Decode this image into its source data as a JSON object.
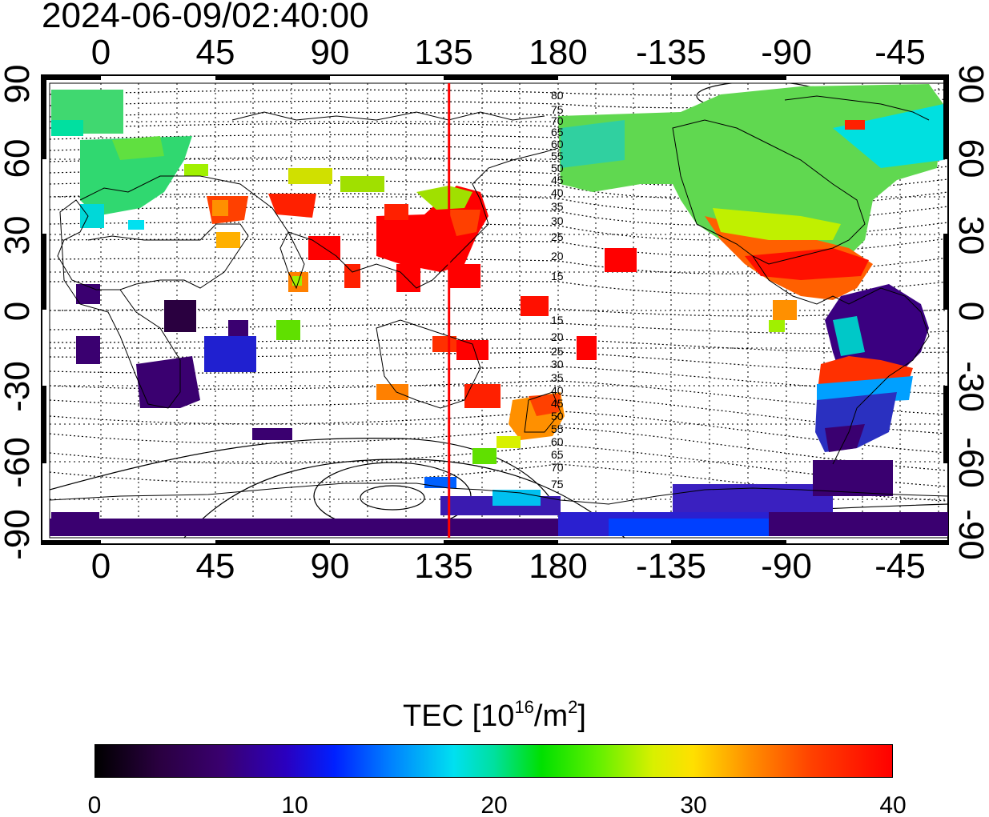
{
  "timestamp": "2024-06-09/02:40:00",
  "lon_labels_top": [
    "0",
    "45",
    "90",
    "135",
    "180",
    "-135",
    "-90",
    "-45"
  ],
  "lon_labels_bottom": [
    "0",
    "45",
    "90",
    "135",
    "180",
    "-135",
    "-90",
    "-45"
  ],
  "lat_labels_left": [
    "90",
    "60",
    "30",
    "0",
    "-30",
    "-60",
    "-90"
  ],
  "lat_labels_right": [
    "90",
    "60",
    "30",
    "0",
    "-30",
    "-60",
    "-90"
  ],
  "map": {
    "lon_range": [
      -20,
      340
    ],
    "lat_range": [
      -90,
      90
    ],
    "grid": true,
    "marker_longitude": 140,
    "marker_color": "#ff0000"
  },
  "contour_labels_north": [
    "80",
    "75",
    "70",
    "65",
    "60",
    "55",
    "50",
    "45",
    "40",
    "35",
    "30",
    "25",
    "20",
    "15"
  ],
  "contour_labels_south": [
    "15",
    "20",
    "25",
    "30",
    "35",
    "40",
    "45",
    "50",
    "55",
    "60",
    "65",
    "70",
    "75"
  ],
  "colorbar": {
    "title_prefix": "TEC  [10",
    "title_exp1": "16",
    "title_mid": "/m",
    "title_exp2": "2",
    "title_suffix": "]",
    "min": 0,
    "max": 40,
    "ticks": [
      "0",
      "10",
      "20",
      "30",
      "40"
    ]
  }
}
